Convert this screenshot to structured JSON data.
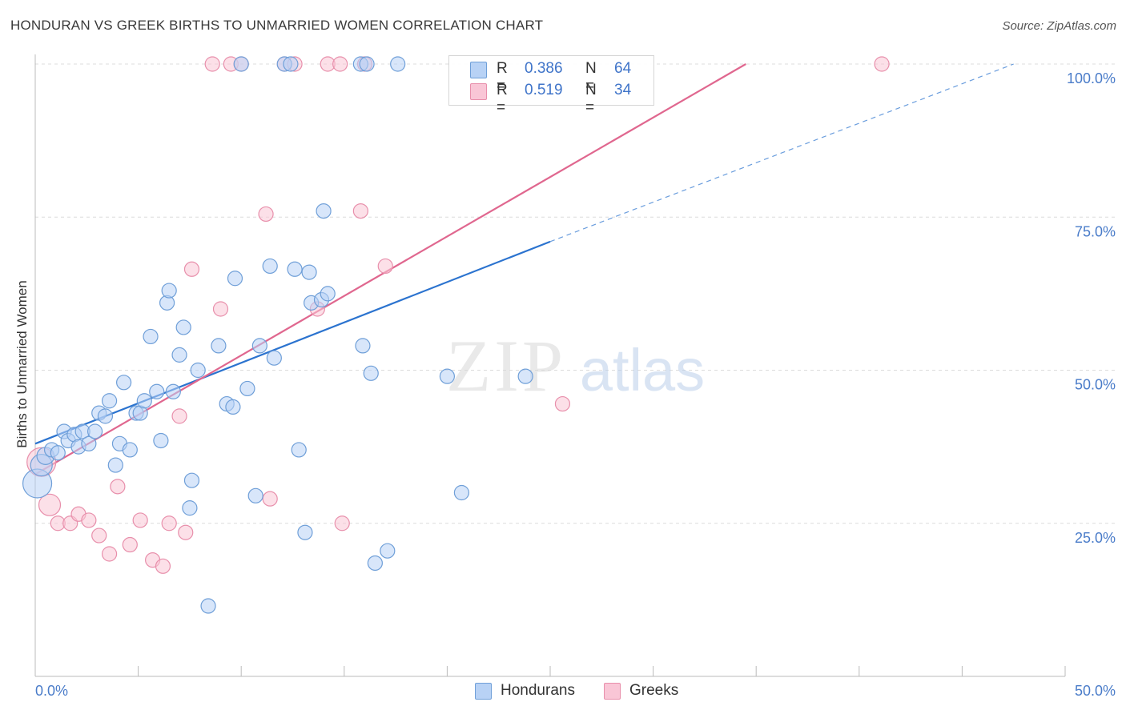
{
  "header": {
    "title": "HONDURAN VS GREEK BIRTHS TO UNMARRIED WOMEN CORRELATION CHART",
    "source": "Source: ZipAtlas.com"
  },
  "legend": {
    "hondurans": {
      "r_label": "R =",
      "r_value": "0.386",
      "n_label": "N =",
      "n_value": "64"
    },
    "greeks": {
      "r_label": "R =",
      "r_value": "0.519",
      "n_label": "N =",
      "n_value": "34"
    }
  },
  "bottom_legend": {
    "hondurans": "Hondurans",
    "greeks": "Greeks"
  },
  "colors": {
    "hondurans_fill": "#b8d2f5",
    "hondurans_stroke": "#6f9fd8",
    "hondurans_line": "#2b73cf",
    "greeks_fill": "#f9c6d6",
    "greeks_stroke": "#e88fab",
    "greeks_line": "#e0678f",
    "grid": "#dcdcdc",
    "tick_text": "#4a7cc9"
  },
  "chart_data": {
    "type": "scatter",
    "title": "HONDURAN VS GREEK BIRTHS TO UNMARRIED WOMEN CORRELATION CHART",
    "xlabel": "",
    "ylabel": "Births to Unmarried Women",
    "xlim": [
      0,
      50
    ],
    "ylim": [
      0,
      103
    ],
    "x_tick_labels": [
      "0.0%",
      "50.0%"
    ],
    "y_ticks": [
      25,
      50,
      75,
      100
    ],
    "y_tick_labels": [
      "25.0%",
      "50.0%",
      "75.0%",
      "100.0%"
    ],
    "grid": true,
    "watermark": "ZIPatlas",
    "series": [
      {
        "name": "Hondurans",
        "r": 0.386,
        "n": 64,
        "trend": {
          "x0": 0,
          "y0": 38,
          "x1": 25,
          "y1": 71,
          "dashed_to_x": 47.5,
          "dashed_to_y": 100
        },
        "points": [
          [
            0.1,
            31.5,
            2
          ],
          [
            0.3,
            34.5,
            1.5
          ],
          [
            0.5,
            36,
            1.2
          ],
          [
            0.8,
            37,
            1
          ],
          [
            1.1,
            36.5,
            1
          ],
          [
            1.4,
            40,
            1
          ],
          [
            1.6,
            38.5,
            1
          ],
          [
            1.9,
            39.5,
            1
          ],
          [
            2.1,
            37.5,
            1
          ],
          [
            2.3,
            40,
            1
          ],
          [
            2.6,
            38,
            1
          ],
          [
            2.9,
            40,
            1
          ],
          [
            3.1,
            43,
            1
          ],
          [
            3.4,
            42.5,
            1
          ],
          [
            3.6,
            45,
            1
          ],
          [
            3.9,
            34.5,
            1
          ],
          [
            4.1,
            38,
            1
          ],
          [
            4.3,
            48,
            1
          ],
          [
            4.6,
            37,
            1
          ],
          [
            4.9,
            43,
            1
          ],
          [
            5.1,
            43,
            1
          ],
          [
            5.3,
            45,
            1
          ],
          [
            5.6,
            55.5,
            1
          ],
          [
            5.9,
            46.5,
            1
          ],
          [
            6.1,
            38.5,
            1
          ],
          [
            6.4,
            61,
            1
          ],
          [
            6.5,
            63,
            1
          ],
          [
            6.7,
            46.5,
            1
          ],
          [
            7.0,
            52.5,
            1
          ],
          [
            7.2,
            57,
            1
          ],
          [
            7.5,
            27.5,
            1
          ],
          [
            7.6,
            32,
            1
          ],
          [
            7.9,
            50,
            1
          ],
          [
            8.4,
            11.5,
            1
          ],
          [
            8.9,
            54,
            1
          ],
          [
            9.3,
            44.5,
            1
          ],
          [
            9.6,
            44,
            1
          ],
          [
            9.7,
            65,
            1
          ],
          [
            10.3,
            47,
            1
          ],
          [
            10.7,
            29.5,
            1
          ],
          [
            10.9,
            54,
            1
          ],
          [
            11.4,
            67,
            1
          ],
          [
            11.6,
            52,
            1
          ],
          [
            12.1,
            100,
            1
          ],
          [
            12.4,
            100,
            1
          ],
          [
            12.6,
            66.5,
            1
          ],
          [
            12.8,
            37,
            1
          ],
          [
            13.1,
            23.5,
            1
          ],
          [
            13.3,
            66,
            1
          ],
          [
            13.4,
            61,
            1
          ],
          [
            13.9,
            61.5,
            1
          ],
          [
            14.0,
            76,
            1
          ],
          [
            14.2,
            62.5,
            1
          ],
          [
            15.8,
            100,
            1
          ],
          [
            15.9,
            54,
            1
          ],
          [
            16.1,
            100,
            1
          ],
          [
            16.3,
            49.5,
            1
          ],
          [
            16.5,
            18.5,
            1
          ],
          [
            17.1,
            20.5,
            1
          ],
          [
            17.6,
            100,
            1
          ],
          [
            10.0,
            100,
            1
          ],
          [
            20.0,
            49,
            1
          ],
          [
            23.8,
            49,
            1
          ],
          [
            20.7,
            30,
            1
          ]
        ]
      },
      {
        "name": "Greeks",
        "r": 0.519,
        "n": 34,
        "trend": {
          "x0": 0,
          "y0": 33,
          "x1": 34.5,
          "y1": 100
        },
        "points": [
          [
            0.3,
            35,
            2
          ],
          [
            0.7,
            28,
            1.5
          ],
          [
            1.1,
            25,
            1
          ],
          [
            1.7,
            25,
            1
          ],
          [
            2.1,
            26.5,
            1
          ],
          [
            2.6,
            25.5,
            1
          ],
          [
            3.1,
            23,
            1
          ],
          [
            3.6,
            20,
            1
          ],
          [
            4.0,
            31,
            1
          ],
          [
            4.6,
            21.5,
            1
          ],
          [
            5.1,
            25.5,
            1
          ],
          [
            5.7,
            19,
            1
          ],
          [
            6.2,
            18,
            1
          ],
          [
            6.5,
            25,
            1
          ],
          [
            7.0,
            42.5,
            1
          ],
          [
            7.3,
            23.5,
            1
          ],
          [
            7.6,
            66.5,
            1
          ],
          [
            8.6,
            100,
            1
          ],
          [
            9.0,
            60,
            1
          ],
          [
            9.5,
            100,
            1
          ],
          [
            10.0,
            100,
            1
          ],
          [
            11.2,
            75.5,
            1
          ],
          [
            11.4,
            29,
            1
          ],
          [
            12.1,
            100,
            1
          ],
          [
            12.6,
            100,
            1
          ],
          [
            13.7,
            60,
            1
          ],
          [
            14.2,
            100,
            1
          ],
          [
            14.8,
            100,
            1
          ],
          [
            14.9,
            25,
            1
          ],
          [
            15.8,
            76,
            1
          ],
          [
            16.0,
            100,
            1
          ],
          [
            17.0,
            67,
            1
          ],
          [
            25.6,
            44.5,
            1
          ],
          [
            41.1,
            100,
            1
          ]
        ]
      }
    ]
  }
}
